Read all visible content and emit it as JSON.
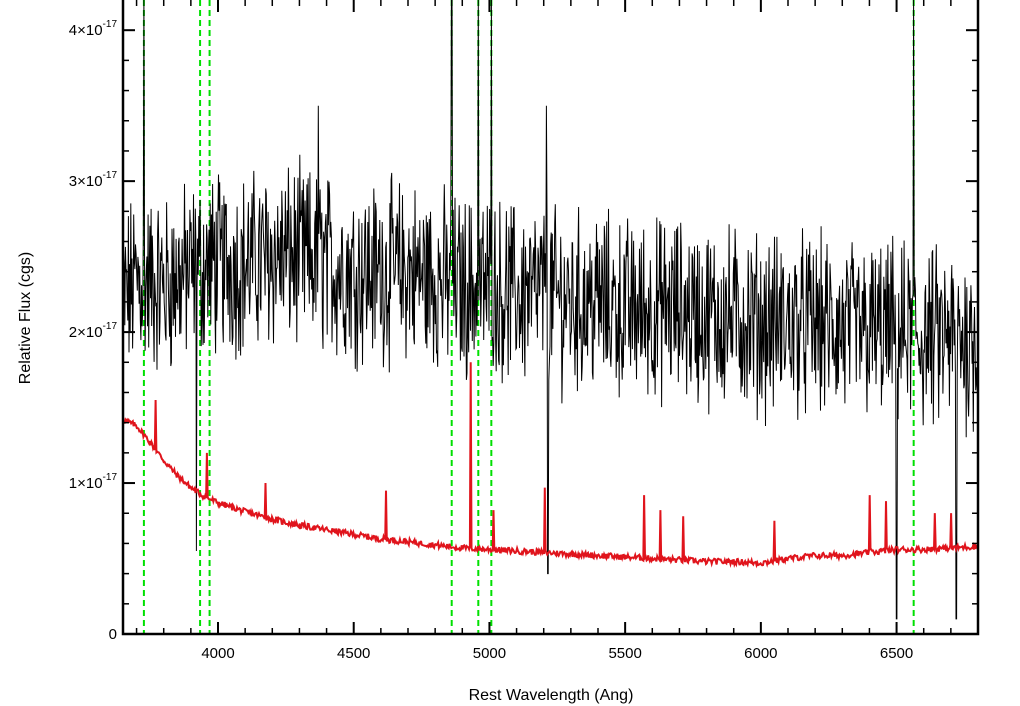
{
  "chart_data": {
    "type": "line",
    "title": "",
    "xlabel": "Rest Wavelength (Ang)",
    "ylabel": "Relative Flux (cgs)",
    "xlim": [
      3650,
      6800
    ],
    "ylim": [
      0,
      4.2e-17
    ],
    "x_ticks": [
      4000,
      4500,
      5000,
      5500,
      6000,
      6500
    ],
    "y_ticks": [
      {
        "value": 0,
        "mantissa": "0",
        "exponent": ""
      },
      {
        "value": 1e-17,
        "mantissa": "1×10",
        "exponent": "-17"
      },
      {
        "value": 2e-17,
        "mantissa": "2×10",
        "exponent": "-17"
      },
      {
        "value": 3e-17,
        "mantissa": "3×10",
        "exponent": "-17"
      },
      {
        "value": 4e-17,
        "mantissa": "4×10",
        "exponent": "-17"
      }
    ],
    "grid": false,
    "series": [
      {
        "color": "#000000",
        "style": "noisy observed spectrum",
        "x": [
          3650,
          3700,
          3800,
          3900,
          4000,
          4100,
          4200,
          4300,
          4400,
          4500,
          4600,
          4700,
          4800,
          4900,
          5000,
          5100,
          5200,
          5300,
          5400,
          5500,
          5600,
          5700,
          5800,
          5900,
          6000,
          6100,
          6200,
          6300,
          6400,
          6500,
          6600,
          6700,
          6800
        ],
        "y": [
          2.2e-17,
          2.35e-17,
          2.3e-17,
          2.4e-17,
          2.45e-17,
          2.45e-17,
          2.5e-17,
          2.5e-17,
          2.45e-17,
          2.4e-17,
          2.4e-17,
          2.4e-17,
          2.35e-17,
          2.3e-17,
          2.3e-17,
          2.25e-17,
          2.25e-17,
          2.2e-17,
          2.2e-17,
          2.15e-17,
          2.15e-17,
          2.15e-17,
          2.1e-17,
          2.1e-17,
          2.05e-17,
          2.05e-17,
          2.05e-17,
          2e-17,
          2e-17,
          2e-17,
          1.95e-17,
          1.95e-17,
          1.95e-17
        ],
        "spikes": [
          {
            "x": 3727,
            "y": 4.2e-17
          },
          {
            "x": 4861,
            "y": 4.2e-17
          },
          {
            "x": 4959,
            "y": 4.2e-17
          },
          {
            "x": 5007,
            "y": 4.2e-17
          },
          {
            "x": 6500,
            "y": 4.2e-17
          },
          {
            "x": 6563,
            "y": 4.2e-17
          },
          {
            "x": 5210,
            "y": 3.5e-17
          },
          {
            "x": 4370,
            "y": 3.5e-17
          },
          {
            "x": 3920,
            "y": 5.5e-18
          },
          {
            "x": 5215,
            "y": 4e-18
          },
          {
            "x": 6500,
            "y": 1e-18
          },
          {
            "x": 6720,
            "y": 1e-18
          }
        ]
      },
      {
        "color": "#e0141c",
        "style": "model spectrum",
        "x": [
          3650,
          3700,
          3750,
          3800,
          3850,
          3900,
          3950,
          4000,
          4100,
          4200,
          4300,
          4400,
          4500,
          4600,
          4700,
          4800,
          4900,
          5000,
          5100,
          5200,
          5300,
          5400,
          5500,
          5600,
          5700,
          5800,
          5900,
          6000,
          6100,
          6200,
          6300,
          6400,
          6500,
          6600,
          6700,
          6800
        ],
        "y": [
          1.42e-17,
          1.38e-17,
          1.27e-17,
          1.15e-17,
          1.05e-17,
          9.7e-18,
          9.1e-18,
          8.7e-18,
          8.1e-18,
          7.6e-18,
          7.2e-18,
          6.9e-18,
          6.6e-18,
          6.3e-18,
          6.1e-18,
          5.9e-18,
          5.7e-18,
          5.6e-18,
          5.5e-18,
          5.4e-18,
          5.3e-18,
          5.2e-18,
          5.1e-18,
          5e-18,
          4.9e-18,
          4.8e-18,
          4.8e-18,
          4.7e-18,
          5e-18,
          5.2e-18,
          5.2e-18,
          5.4e-18,
          5.6e-18,
          5.6e-18,
          5.7e-18,
          5.8e-18
        ],
        "lines": [
          {
            "x": 3770,
            "y": 1.55e-17
          },
          {
            "x": 3960,
            "y": 1.2e-17
          },
          {
            "x": 4175,
            "y": 1e-17
          },
          {
            "x": 4620,
            "y": 9.5e-18
          },
          {
            "x": 4930,
            "y": 1.8e-17
          },
          {
            "x": 5015,
            "y": 8.2e-18
          },
          {
            "x": 5205,
            "y": 9.7e-18
          },
          {
            "x": 5570,
            "y": 9.2e-18
          },
          {
            "x": 5630,
            "y": 8.2e-18
          },
          {
            "x": 5715,
            "y": 7.8e-18
          },
          {
            "x": 6050,
            "y": 7.5e-18
          },
          {
            "x": 6400,
            "y": 9.2e-18
          },
          {
            "x": 6460,
            "y": 8.8e-18
          },
          {
            "x": 6640,
            "y": 8e-18
          },
          {
            "x": 6700,
            "y": 8e-18
          }
        ]
      }
    ],
    "reference_lines": {
      "color": "#00e000",
      "style": "dashed",
      "x": [
        3727,
        3934,
        3969,
        4861,
        4959,
        5007,
        6563
      ]
    }
  }
}
